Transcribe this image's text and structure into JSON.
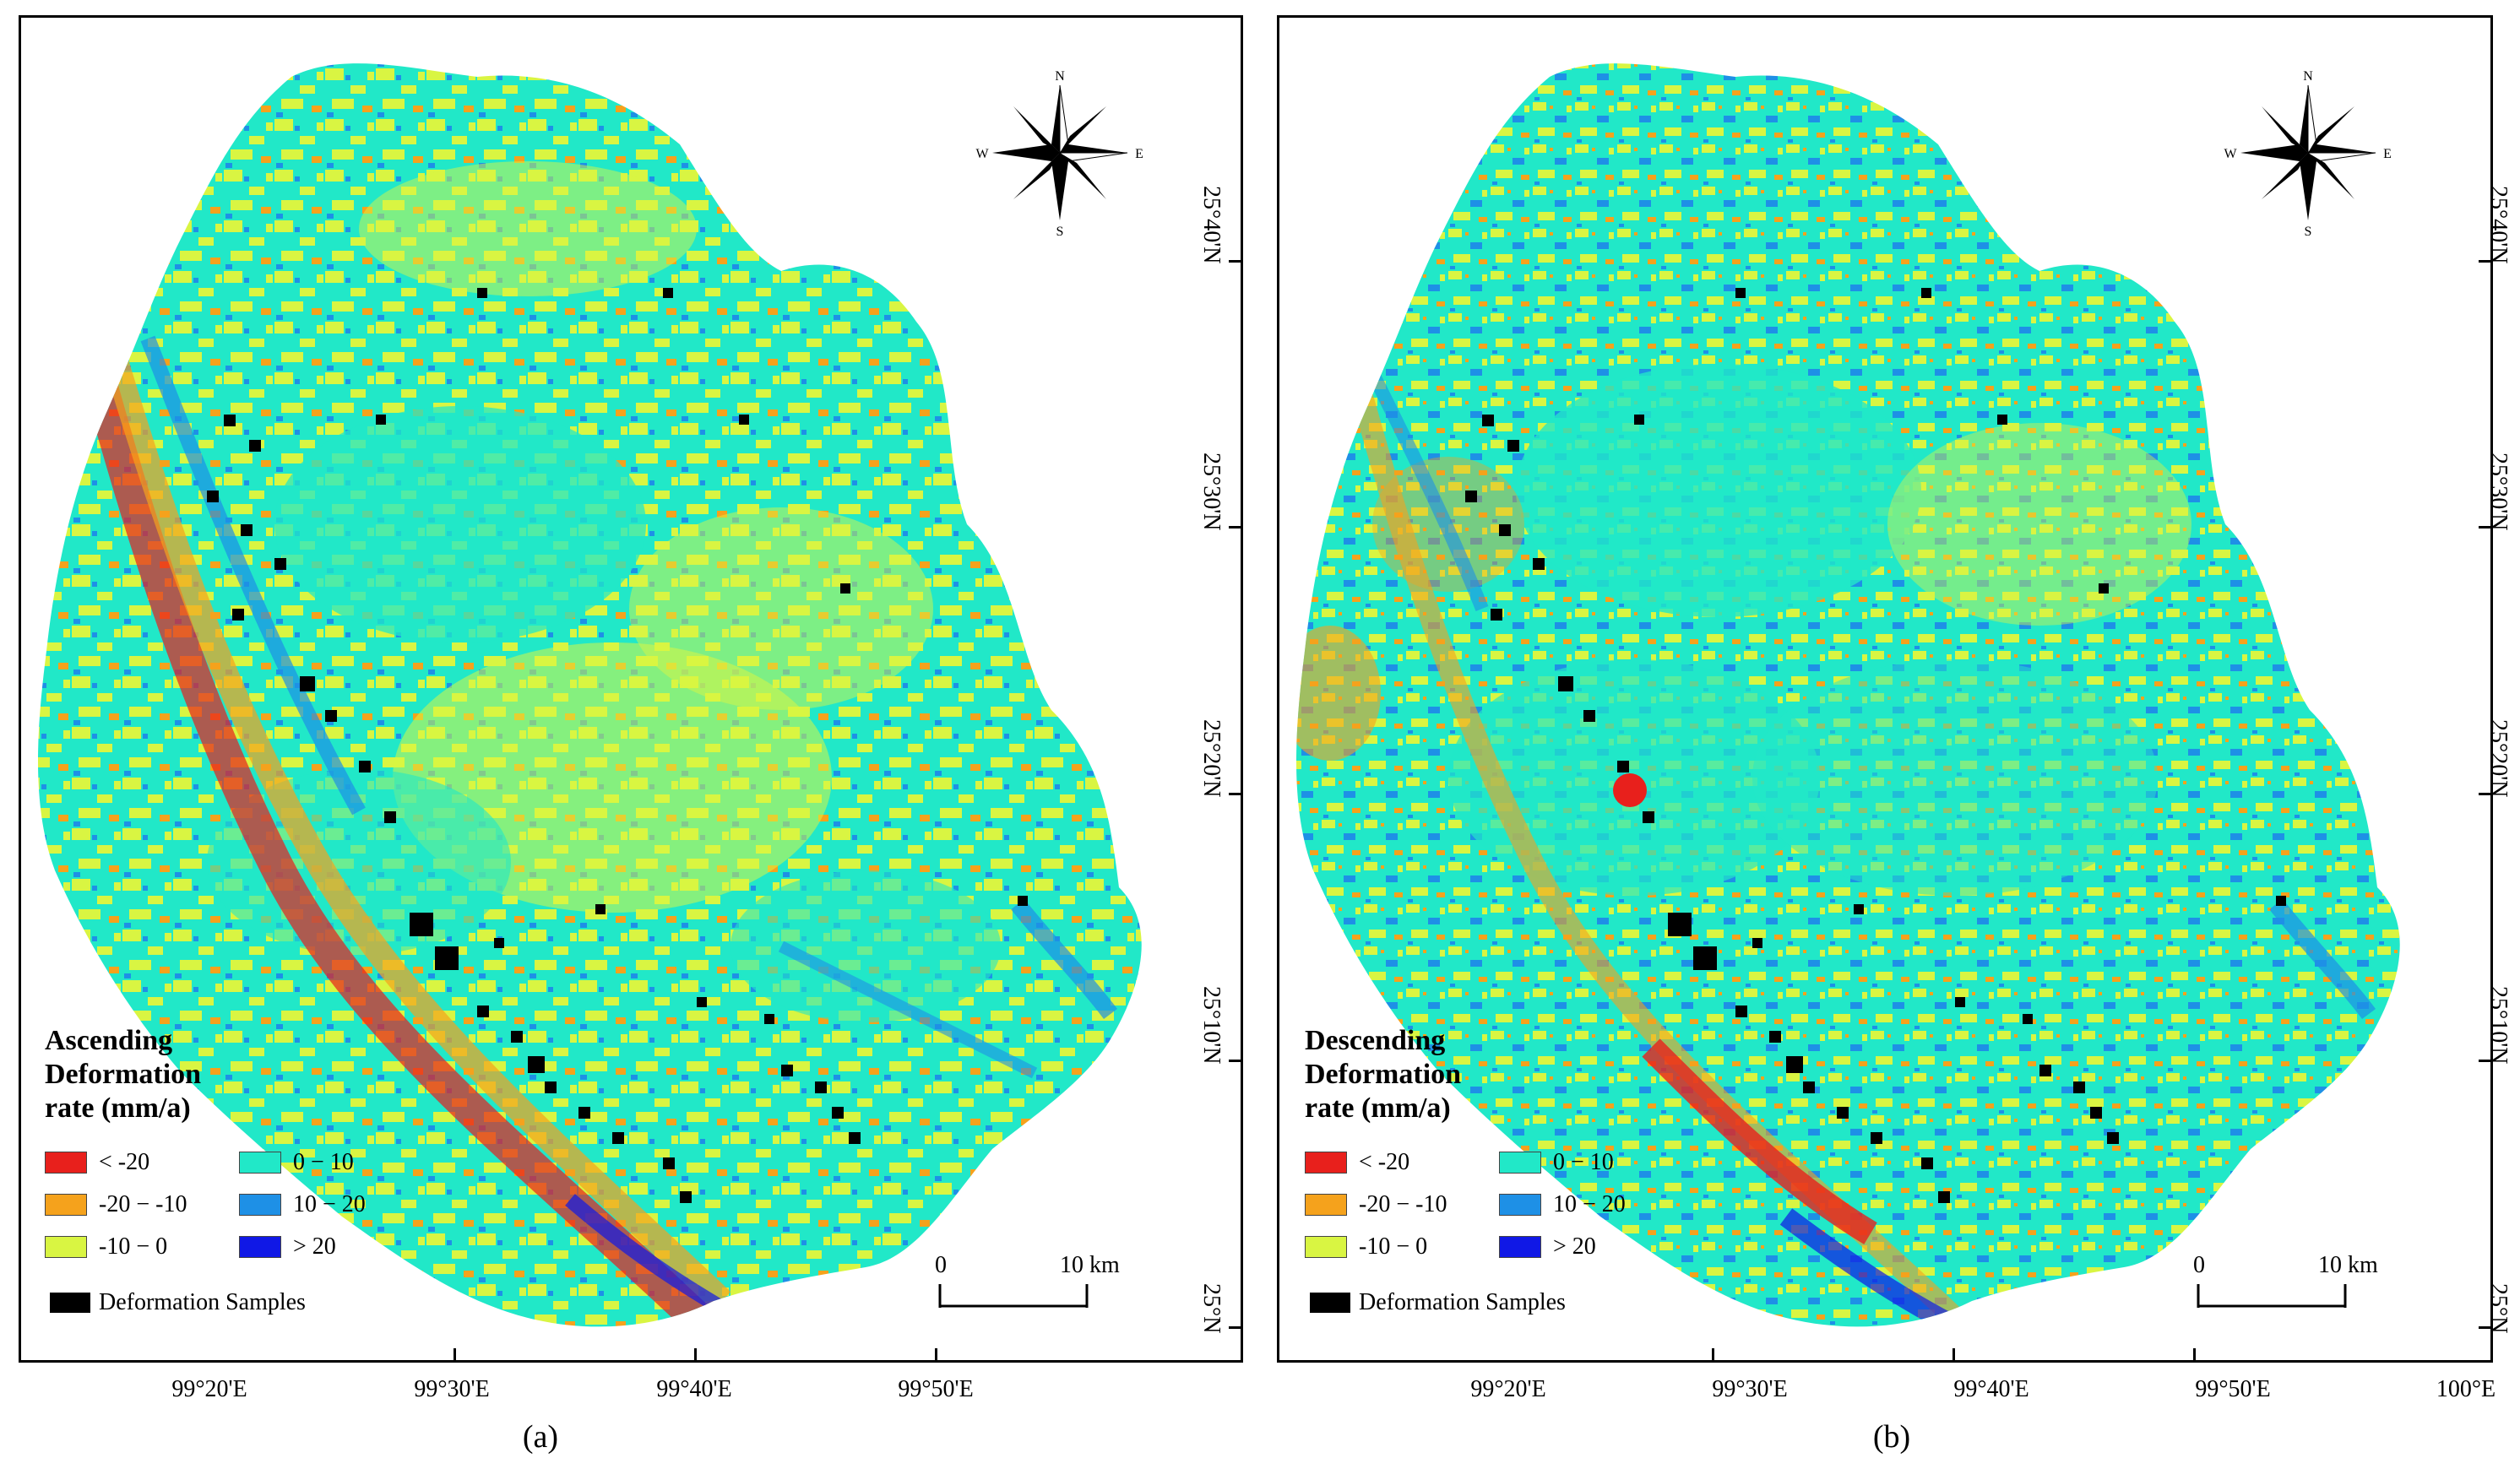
{
  "panels": [
    {
      "id": "a",
      "label": "(a)",
      "legend_title": "Ascending\nDeformation\nrate (mm/a)",
      "samples_label": "Deformation Samples",
      "scale_zero": "0",
      "scale_label": "10 km",
      "lon_labels": [
        "99°20'E",
        "99°30'E",
        "99°40'E",
        "99°50'E"
      ],
      "lat_labels": [
        "25°40'N",
        "25°30'N",
        "25°20'N",
        "25°10'N",
        "25°N"
      ]
    },
    {
      "id": "b",
      "label": "(b)",
      "legend_title": "Descending\nDeformation\nrate (mm/a)",
      "samples_label": "Deformation Samples",
      "scale_zero": "0",
      "scale_label": "10 km",
      "lon_labels": [
        "99°20'E",
        "99°30'E",
        "99°40'E",
        "99°50'E",
        "100°E"
      ],
      "lat_labels": [
        "25°40'N",
        "25°30'N",
        "25°20'N",
        "25°10'N",
        "25°N"
      ]
    }
  ],
  "legend_classes": [
    {
      "label": "< -20",
      "color": "#e8201c"
    },
    {
      "label": "0 − 10",
      "color": "#21e8c8"
    },
    {
      "label": "-20 − -10",
      "color": "#f5a21c"
    },
    {
      "label": "10 − 20",
      "color": "#1e90e6"
    },
    {
      "label": "-10 − 0",
      "color": "#d9f542"
    },
    {
      "label": "> 20",
      "color": "#1018e6"
    }
  ],
  "compass": {
    "n": "N",
    "s": "S",
    "e": "E",
    "w": "W"
  },
  "colors": {
    "base_cyan": "#21e8c8",
    "yellow": "#d9f542",
    "orange": "#f5a21c",
    "red": "#e8201c",
    "blue": "#1e90e6",
    "dark_blue": "#1018e6",
    "sample": "#000000"
  }
}
